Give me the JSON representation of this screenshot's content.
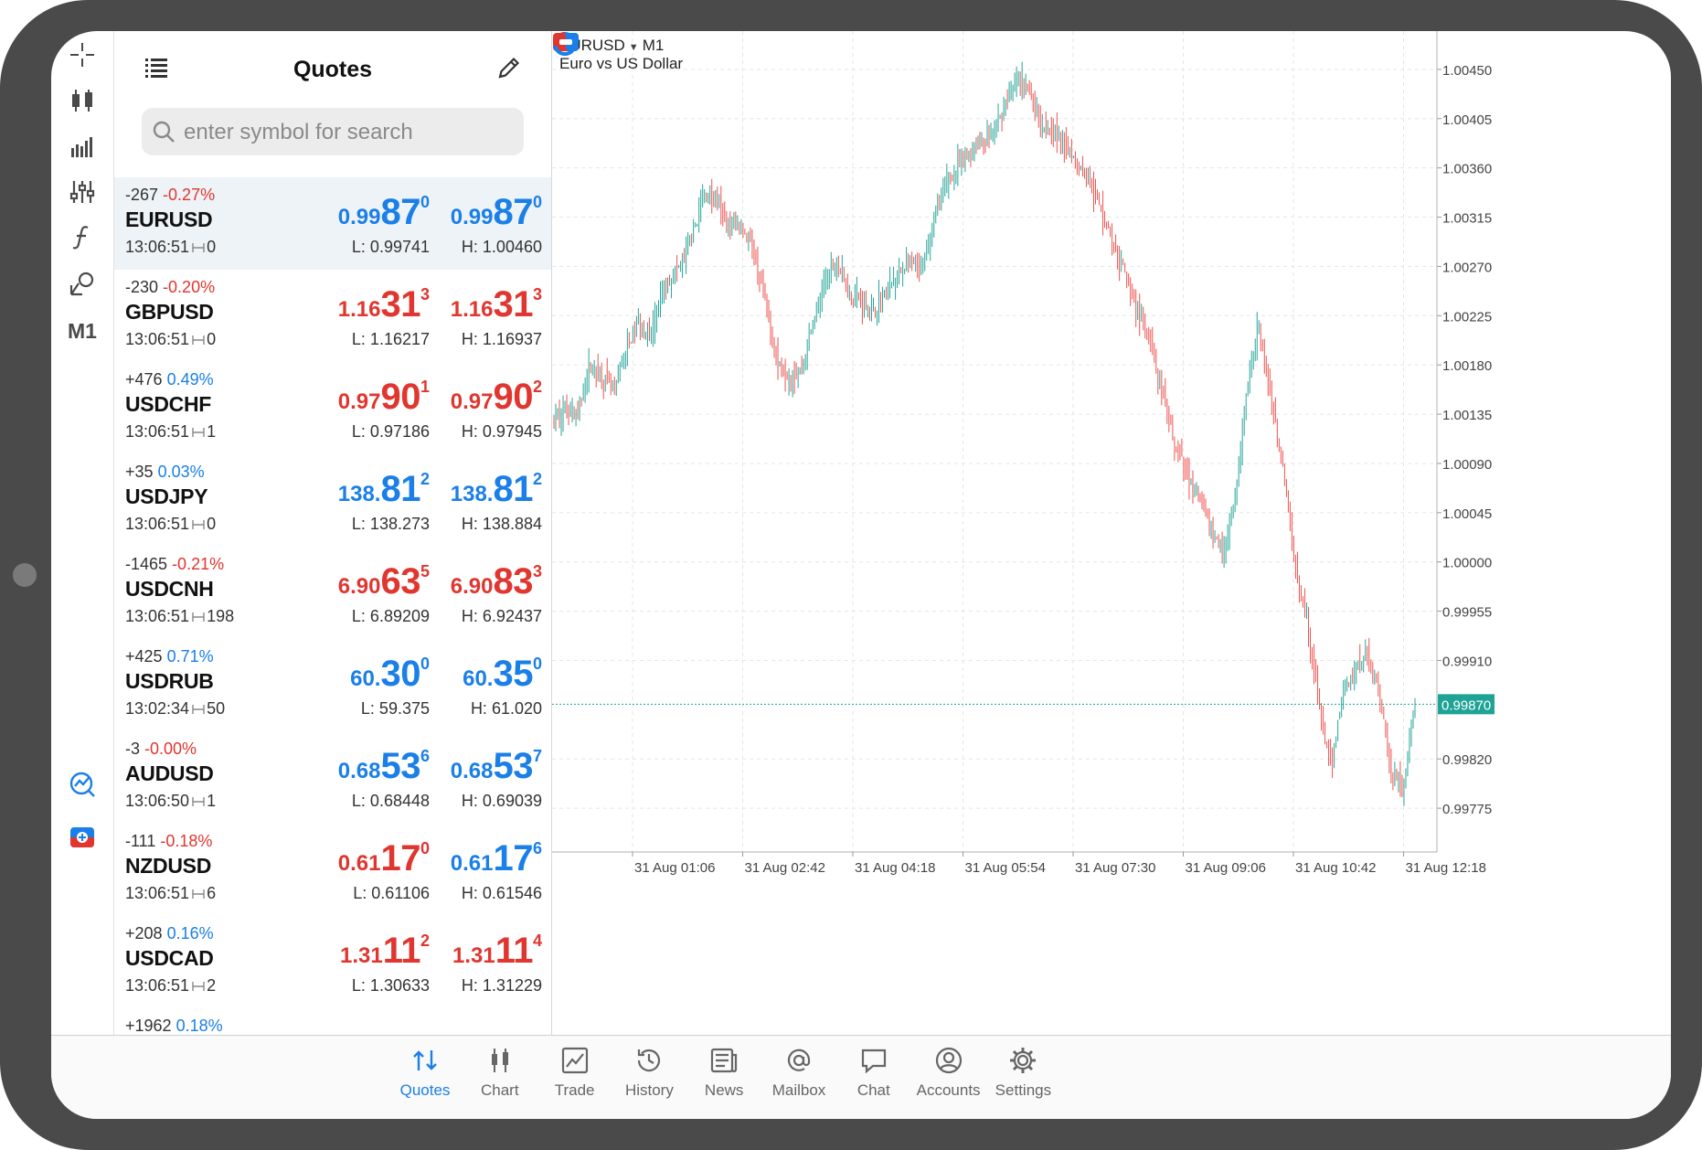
{
  "toolbar": {
    "items": [
      "crosshair-icon",
      "candlestick-chart-icon",
      "volume-bars-icon",
      "indicators-sliders-icon",
      "function-icon",
      "objects-icon"
    ],
    "timeframe": "M1",
    "bottom_items": [
      "trading-signals-icon",
      "one-click-trading-icon"
    ]
  },
  "quotes": {
    "title": "Quotes",
    "search_placeholder": "enter symbol for search",
    "rows": [
      {
        "points": "-267",
        "percent": "-0.27%",
        "symbol": "EURUSD",
        "time": "13:06:51",
        "spread": "0",
        "bid_pre": "0.99",
        "bid_big": "87",
        "bid_sup": "0",
        "ask_pre": "0.99",
        "ask_big": "87",
        "ask_sup": "0",
        "low": "L: 0.99741",
        "high": "H: 1.00460",
        "change_dir": "down",
        "bid_dir": "up",
        "ask_dir": "up",
        "selected": true
      },
      {
        "points": "-230",
        "percent": "-0.20%",
        "symbol": "GBPUSD",
        "time": "13:06:51",
        "spread": "0",
        "bid_pre": "1.16",
        "bid_big": "31",
        "bid_sup": "3",
        "ask_pre": "1.16",
        "ask_big": "31",
        "ask_sup": "3",
        "low": "L: 1.16217",
        "high": "H: 1.16937",
        "change_dir": "down",
        "bid_dir": "down",
        "ask_dir": "down"
      },
      {
        "points": "+476",
        "percent": "0.49%",
        "symbol": "USDCHF",
        "time": "13:06:51",
        "spread": "1",
        "bid_pre": "0.97",
        "bid_big": "90",
        "bid_sup": "1",
        "ask_pre": "0.97",
        "ask_big": "90",
        "ask_sup": "2",
        "low": "L: 0.97186",
        "high": "H: 0.97945",
        "change_dir": "up",
        "bid_dir": "down",
        "ask_dir": "down"
      },
      {
        "points": "+35",
        "percent": "0.03%",
        "symbol": "USDJPY",
        "time": "13:06:51",
        "spread": "0",
        "bid_pre": "138.",
        "bid_big": "81",
        "bid_sup": "2",
        "ask_pre": "138.",
        "ask_big": "81",
        "ask_sup": "2",
        "low": "L: 138.273",
        "high": "H: 138.884",
        "change_dir": "up",
        "bid_dir": "up",
        "ask_dir": "up"
      },
      {
        "points": "-1465",
        "percent": "-0.21%",
        "symbol": "USDCNH",
        "time": "13:06:51",
        "spread": "198",
        "bid_pre": "6.90",
        "bid_big": "63",
        "bid_sup": "5",
        "ask_pre": "6.90",
        "ask_big": "83",
        "ask_sup": "3",
        "low": "L: 6.89209",
        "high": "H: 6.92437",
        "change_dir": "down",
        "bid_dir": "down",
        "ask_dir": "down"
      },
      {
        "points": "+425",
        "percent": "0.71%",
        "symbol": "USDRUB",
        "time": "13:02:34",
        "spread": "50",
        "bid_pre": "60.",
        "bid_big": "30",
        "bid_sup": "0",
        "ask_pre": "60.",
        "ask_big": "35",
        "ask_sup": "0",
        "low": "L: 59.375",
        "high": "H: 61.020",
        "change_dir": "up",
        "bid_dir": "up",
        "ask_dir": "up"
      },
      {
        "points": "-3",
        "percent": "-0.00%",
        "symbol": "AUDUSD",
        "time": "13:06:50",
        "spread": "1",
        "bid_pre": "0.68",
        "bid_big": "53",
        "bid_sup": "6",
        "ask_pre": "0.68",
        "ask_big": "53",
        "ask_sup": "7",
        "low": "L: 0.68448",
        "high": "H: 0.69039",
        "change_dir": "down",
        "bid_dir": "up",
        "ask_dir": "up"
      },
      {
        "points": "-111",
        "percent": "-0.18%",
        "symbol": "NZDUSD",
        "time": "13:06:51",
        "spread": "6",
        "bid_pre": "0.61",
        "bid_big": "17",
        "bid_sup": "0",
        "ask_pre": "0.61",
        "ask_big": "17",
        "ask_sup": "6",
        "low": "L: 0.61106",
        "high": "H: 0.61546",
        "change_dir": "down",
        "bid_dir": "down",
        "ask_dir": "up"
      },
      {
        "points": "+208",
        "percent": "0.16%",
        "symbol": "USDCAD",
        "time": "13:06:51",
        "spread": "2",
        "bid_pre": "1.31",
        "bid_big": "11",
        "bid_sup": "2",
        "ask_pre": "1.31",
        "ask_big": "11",
        "ask_sup": "4",
        "low": "L: 1.30633",
        "high": "H: 1.31229",
        "change_dir": "up",
        "bid_dir": "down",
        "ask_dir": "down"
      },
      {
        "points": "+1962",
        "percent": "0.18%",
        "symbol": "",
        "time": "",
        "spread": "",
        "bid_pre": "",
        "bid_big": "",
        "bid_sup": "",
        "ask_pre": "",
        "ask_big": "",
        "ask_sup": "",
        "low": "",
        "high": "",
        "change_dir": "up",
        "bid_dir": "up",
        "ask_dir": "up",
        "partial": true
      }
    ]
  },
  "chart": {
    "symbol": "EURUSD",
    "timeframe": "M1",
    "description": "Euro vs US Dollar",
    "colors": {
      "bull": "#26a69a",
      "bear": "#ef5350",
      "grid": "#e6e6e6",
      "current": "#1fa396"
    }
  },
  "chart_data": {
    "type": "candlestick",
    "symbol": "EURUSD",
    "timeframe": "M1",
    "y_ticks": [
      "1.00450",
      "1.00405",
      "1.00360",
      "1.00315",
      "1.00270",
      "1.00225",
      "1.00180",
      "1.00135",
      "1.00090",
      "1.00045",
      "1.00000",
      "0.99955",
      "0.99910",
      "0.99820",
      "0.99775"
    ],
    "ylim": [
      0.99735,
      1.00485
    ],
    "x_ticks": [
      "31 Aug 01:06",
      "31 Aug 02:42",
      "31 Aug 04:18",
      "31 Aug 05:54",
      "31 Aug 07:30",
      "31 Aug 09:06",
      "31 Aug 10:42",
      "31 Aug 12:18"
    ],
    "current_price": "0.99870",
    "current_value": 0.9987,
    "price_path": [
      [
        0,
        1.0013
      ],
      [
        2,
        1.0014
      ],
      [
        4,
        1.00135
      ],
      [
        6,
        1.0018
      ],
      [
        8,
        1.0017
      ],
      [
        10,
        1.00155
      ],
      [
        12,
        1.00195
      ],
      [
        14,
        1.0022
      ],
      [
        16,
        1.00205
      ],
      [
        18,
        1.00245
      ],
      [
        20,
        1.00265
      ],
      [
        21,
        1.0027
      ],
      [
        23,
        1.003
      ],
      [
        25,
        1.00335
      ],
      [
        27,
        1.0033
      ],
      [
        29,
        1.00305
      ],
      [
        31,
        1.0031
      ],
      [
        33,
        1.00285
      ],
      [
        35,
        1.0024
      ],
      [
        37,
        1.00185
      ],
      [
        39,
        1.0017
      ],
      [
        41,
        1.00175
      ],
      [
        43,
        1.0022
      ],
      [
        45,
        1.00255
      ],
      [
        47,
        1.00275
      ],
      [
        49,
        1.00245
      ],
      [
        51,
        1.0024
      ],
      [
        53,
        1.0023
      ],
      [
        55,
        1.00245
      ],
      [
        57,
        1.0026
      ],
      [
        59,
        1.00275
      ],
      [
        61,
        1.00265
      ],
      [
        63,
        1.0031
      ],
      [
        65,
        1.00345
      ],
      [
        67,
        1.0036
      ],
      [
        69,
        1.00375
      ],
      [
        71,
        1.00385
      ],
      [
        73,
        1.0039
      ],
      [
        75,
        1.0042
      ],
      [
        77,
        1.0044
      ],
      [
        79,
        1.0043
      ],
      [
        81,
        1.004
      ],
      [
        83,
        1.00395
      ],
      [
        85,
        1.0038
      ],
      [
        87,
        1.00365
      ],
      [
        89,
        1.0035
      ],
      [
        91,
        1.0032
      ],
      [
        93,
        1.00285
      ],
      [
        95,
        1.0026
      ],
      [
        97,
        1.0023
      ],
      [
        99,
        1.002
      ],
      [
        101,
        1.0015
      ],
      [
        103,
        1.0011
      ],
      [
        105,
        1.0008
      ],
      [
        107,
        1.0006
      ],
      [
        109,
        1.0003
      ],
      [
        111,
        1.0001
      ],
      [
        113,
        1.0005
      ],
      [
        115,
        1.0015
      ],
      [
        117,
        1.0022
      ],
      [
        119,
        1.0015
      ],
      [
        121,
        1.0009
      ],
      [
        123,
        1.0
      ],
      [
        125,
        0.9995
      ],
      [
        127,
        0.9987
      ],
      [
        129,
        0.9981
      ],
      [
        131,
        0.9988
      ],
      [
        133,
        0.999
      ],
      [
        135,
        0.9992
      ],
      [
        137,
        0.9988
      ],
      [
        139,
        0.9981
      ],
      [
        141,
        0.9979
      ],
      [
        143,
        0.9987
      ]
    ]
  },
  "tabs": [
    {
      "label": "Quotes",
      "icon": "quotes-arrows-icon",
      "active": true
    },
    {
      "label": "Chart",
      "icon": "chart-candles-icon"
    },
    {
      "label": "Trade",
      "icon": "trade-chart-icon"
    },
    {
      "label": "History",
      "icon": "history-clock-icon"
    },
    {
      "label": "News",
      "icon": "news-icon"
    },
    {
      "label": "Mailbox",
      "icon": "mailbox-at-icon"
    },
    {
      "label": "Chat",
      "icon": "chat-bubble-icon"
    },
    {
      "label": "Accounts",
      "icon": "accounts-user-icon"
    },
    {
      "label": "Settings",
      "icon": "settings-gear-icon"
    }
  ]
}
